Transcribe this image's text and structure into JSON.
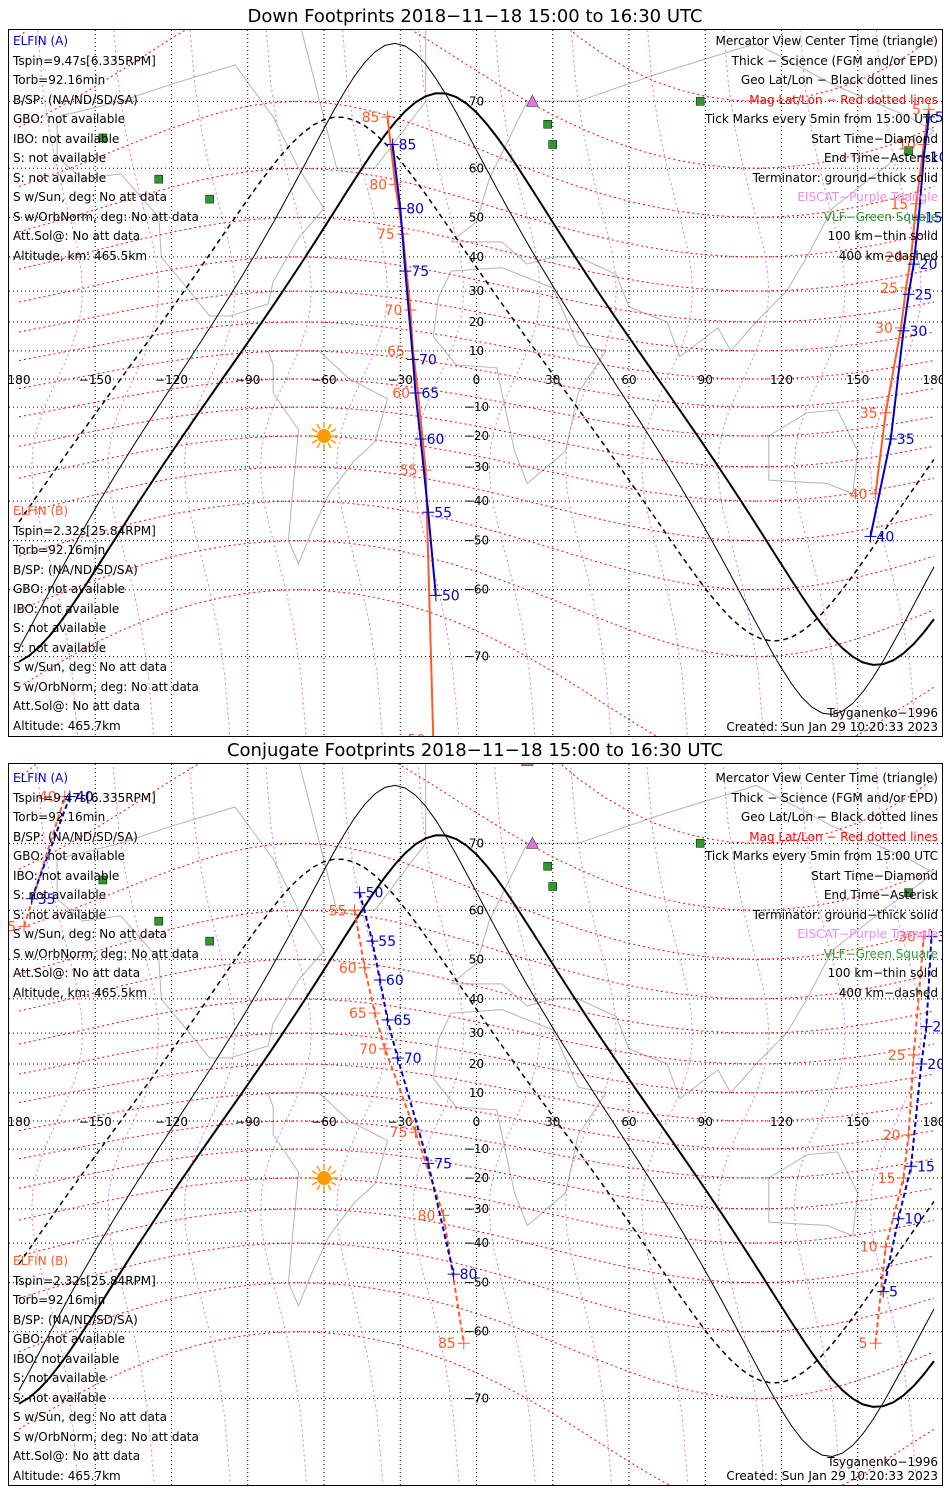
{
  "panels": [
    {
      "title": "Down Footprints 2018−11−18 15:00 to 16:30 UTC",
      "a_header": "ELFIN (A)",
      "a_lines": [
        "Tspin=9.47s[6.335RPM]",
        "Torb=92.16min",
        "B/SP: (NA/ND/SD/SA)",
        "GBO: not available",
        "IBO: not available",
        "S: not available",
        "S: not available",
        "S w/Sun, deg: No att data",
        "S w/OrbNorm, deg: No att data",
        "Att.Sol@: No att data",
        "Altitude, km: 465.5km"
      ],
      "b_header": "ELFIN (B)",
      "b_lines": [
        "Tspin=2.32s[25.84RPM]",
        "Torb=92.16min",
        "B/SP: (NA/ND/SD/SA)",
        "GBO: not available",
        "IBO: not available",
        "S: not available",
        "S: not available",
        "S w/Sun, deg: No att data",
        "S w/OrbNorm, deg: No att data",
        "Att.Sol@: No att data",
        "Altitude: 465.7km"
      ],
      "model": "Tsyganenko−1996",
      "created": "Created: Sun Jan 29 10:20:33 2023"
    },
    {
      "title": "Conjugate Footprints 2018−11−18 15:00 to 16:30 UTC",
      "a_header": "ELFIN (A)",
      "a_lines": [
        "Tspin=9.47s[6.335RPM]",
        "Torb=92.16min",
        "B/SP: (NA/ND/SD/SA)",
        "GBO: not available",
        "IBO: not available",
        "S: not available",
        "S: not available",
        "S w/Sun, deg: No att data",
        "S w/OrbNorm, deg: No att data",
        "Att.Sol@: No att data",
        "Altitude, km: 465.5km"
      ],
      "b_header": "ELFIN (B)",
      "b_lines": [
        "Tspin=2.32s[25.84RPM]",
        "Torb=92.16min",
        "B/SP: (NA/ND/SD/SA)",
        "GBO: not available",
        "IBO: not available",
        "S: not available",
        "S: not available",
        "S w/Sun, deg: No att data",
        "S w/OrbNorm, deg: No att data",
        "Att.Sol@: No att data",
        "Altitude: 465.7km"
      ],
      "model": "Tsyganenko−1996",
      "created": "Created: Sun Jan 29 10:20:33 2023"
    }
  ],
  "legend": {
    "view_center": "Mercator View Center Time (triangle)",
    "thick": "Thick − Science (FGM and/or EPD)",
    "geo": "Geo Lat/Lon − Black dotted lines",
    "mag": "Mag Lat/Lon − Red dotted lines",
    "ticks": "Tick Marks every 5min from 15:00 UTC",
    "start": "Start Time−Diamond",
    "end": "End Time−Asterisk",
    "terminator": "Terminator: ground−thick solid",
    "eiscat": "EISCAT−Purple Triangle",
    "vlf": "VLF−Green Square",
    "km100": "100 km−thin solid",
    "km400": "400 km−dashed"
  },
  "colors": {
    "elfin_a": "#0000cc",
    "elfin_b": "#ff5a28",
    "mag_grid": "#ff0000",
    "geo_grid": "#000000",
    "eiscat": "#dd77dd",
    "vlf": "#2d9a2d",
    "sun": "#ff9900",
    "coast": "#b4b4b4"
  },
  "axis": {
    "lon_labels": [
      "180",
      "−150",
      "−120",
      "−90",
      "−60",
      "−30",
      "0",
      "30",
      "60",
      "90",
      "120",
      "150",
      "180"
    ],
    "lat_labels": [
      "70",
      "60",
      "50",
      "40",
      "30",
      "20",
      "10",
      "−10",
      "−20",
      "−30",
      "−40",
      "−50",
      "−60",
      "−70"
    ]
  },
  "chart_data": [
    {
      "type": "map",
      "projection": "mercator",
      "title": "Down Footprints 2018−11−18 15:00 to 16:30 UTC",
      "lon_range": [
        -180,
        180
      ],
      "lat_range": [
        -80,
        80
      ],
      "elfin_a": {
        "label_minutes": [
          "5",
          "10",
          "15",
          "20",
          "25",
          "30",
          "35",
          "40",
          "85",
          "80",
          "75",
          "70",
          "65",
          "60",
          "55",
          "50"
        ],
        "lonlat": [
          [
            178,
            68
          ],
          [
            178,
            63
          ],
          [
            174,
            56
          ],
          [
            173,
            46
          ],
          [
            172,
            38
          ],
          [
            170,
            29
          ],
          [
            168,
            17
          ],
          [
            167,
            3
          ],
          [
            165,
            -10
          ],
          [
            163,
            -21
          ],
          [
            160,
            -31
          ],
          [
            156,
            -45
          ],
          [
            152,
            -55
          ],
          [
            148,
            -68
          ],
          [
            145,
            -80
          ],
          [
            -38,
            78
          ],
          [
            -36,
            74
          ],
          [
            -33,
            64
          ],
          [
            -31,
            54
          ],
          [
            -29,
            41
          ],
          [
            -27,
            28
          ],
          [
            -25,
            7
          ],
          [
            -23,
            -9
          ],
          [
            -21,
            -22
          ],
          [
            -19,
            -36
          ],
          [
            -17,
            -49
          ],
          [
            -14,
            -63
          ],
          [
            -11,
            -78
          ]
        ],
        "ticks": [
          {
            "m": "5",
            "lon": 178,
            "lat": 68
          },
          {
            "m": "10",
            "lon": 176,
            "lat": 62
          },
          {
            "m": "15",
            "lon": 174,
            "lat": 50
          },
          {
            "m": "20",
            "lon": 172,
            "lat": 38
          },
          {
            "m": "25",
            "lon": 170,
            "lat": 29
          },
          {
            "m": "30",
            "lon": 168,
            "lat": 17
          },
          {
            "m": "35",
            "lon": 163,
            "lat": -21
          },
          {
            "m": "40",
            "lon": 155,
            "lat": -49
          },
          {
            "m": "85",
            "lon": -33,
            "lat": 64
          },
          {
            "m": "80",
            "lon": -30,
            "lat": 52
          },
          {
            "m": "75",
            "lon": -28,
            "lat": 36
          },
          {
            "m": "70",
            "lon": -25,
            "lat": 7
          },
          {
            "m": "65",
            "lon": -24,
            "lat": -5
          },
          {
            "m": "60",
            "lon": -22,
            "lat": -21
          },
          {
            "m": "55",
            "lon": -19,
            "lat": -43
          },
          {
            "m": "50",
            "lon": -16,
            "lat": -61
          }
        ]
      },
      "elfin_b": {
        "label_minutes": [
          "5",
          "10",
          "15",
          "20",
          "25",
          "30",
          "35",
          "40",
          "85",
          "80",
          "75",
          "70",
          "65",
          "60",
          "55",
          "50"
        ],
        "ticks": [
          {
            "m": "5",
            "lon": 178,
            "lat": 69
          },
          {
            "m": "10",
            "lon": 176,
            "lat": 64
          },
          {
            "m": "15",
            "lon": 173,
            "lat": 53
          },
          {
            "m": "20",
            "lon": 171,
            "lat": 40
          },
          {
            "m": "25",
            "lon": 169,
            "lat": 31
          },
          {
            "m": "30",
            "lon": 167,
            "lat": 18
          },
          {
            "m": "35",
            "lon": 161,
            "lat": -12
          },
          {
            "m": "40",
            "lon": 157,
            "lat": -38
          },
          {
            "m": "85",
            "lon": -35,
            "lat": 68
          },
          {
            "m": "80",
            "lon": -32,
            "lat": 57
          },
          {
            "m": "75",
            "lon": -29,
            "lat": 46
          },
          {
            "m": "70",
            "lon": -26,
            "lat": 24
          },
          {
            "m": "65",
            "lon": -25,
            "lat": 10
          },
          {
            "m": "60",
            "lon": -23,
            "lat": -5
          },
          {
            "m": "55",
            "lon": -20,
            "lat": -31
          },
          {
            "m": "50",
            "lon": -17,
            "lat": -78
          }
        ]
      }
    },
    {
      "type": "map",
      "projection": "mercator",
      "title": "Conjugate Footprints 2018−11−18 15:00 to 16:30 UTC",
      "lon_range": [
        -180,
        180
      ],
      "lat_range": [
        -80,
        80
      ],
      "elfin_a": {
        "ticks": [
          {
            "m": "5",
            "lon": 160,
            "lat": -52
          },
          {
            "m": "10",
            "lon": 166,
            "lat": -33
          },
          {
            "m": "15",
            "lon": 171,
            "lat": -16
          },
          {
            "m": "20",
            "lon": 175,
            "lat": 20
          },
          {
            "m": "25",
            "lon": 177,
            "lat": 32
          },
          {
            "m": "30",
            "lon": 179,
            "lat": 55
          },
          {
            "m": "35",
            "lon": -175,
            "lat": 62
          },
          {
            "m": "40",
            "lon": -160,
            "lat": 75
          },
          {
            "m": "50",
            "lon": -46,
            "lat": 63
          },
          {
            "m": "55",
            "lon": -41,
            "lat": 54
          },
          {
            "m": "60",
            "lon": -38,
            "lat": 45
          },
          {
            "m": "65",
            "lon": -35,
            "lat": 34
          },
          {
            "m": "70",
            "lon": -31,
            "lat": 22
          },
          {
            "m": "75",
            "lon": -19,
            "lat": -15
          },
          {
            "m": "80",
            "lon": -9,
            "lat": -48
          }
        ]
      },
      "elfin_b": {
        "ticks": [
          {
            "m": "5",
            "lon": 157,
            "lat": -62
          },
          {
            "m": "10",
            "lon": 161,
            "lat": -41
          },
          {
            "m": "15",
            "lon": 168,
            "lat": -20
          },
          {
            "m": "20",
            "lon": 170,
            "lat": -5
          },
          {
            "m": "25",
            "lon": 172,
            "lat": 23
          },
          {
            "m": "30",
            "lon": 176,
            "lat": 55
          },
          {
            "m": "35",
            "lon": -178,
            "lat": 57
          },
          {
            "m": "40",
            "lon": -162,
            "lat": 75
          },
          {
            "m": "55",
            "lon": -48,
            "lat": 60
          },
          {
            "m": "60",
            "lon": -44,
            "lat": 48
          },
          {
            "m": "65",
            "lon": -40,
            "lat": 36
          },
          {
            "m": "70",
            "lon": -36,
            "lat": 25
          },
          {
            "m": "75",
            "lon": -24,
            "lat": -4
          },
          {
            "m": "80",
            "lon": -13,
            "lat": -32
          },
          {
            "m": "85",
            "lon": -5,
            "lat": -62
          }
        ]
      }
    }
  ]
}
